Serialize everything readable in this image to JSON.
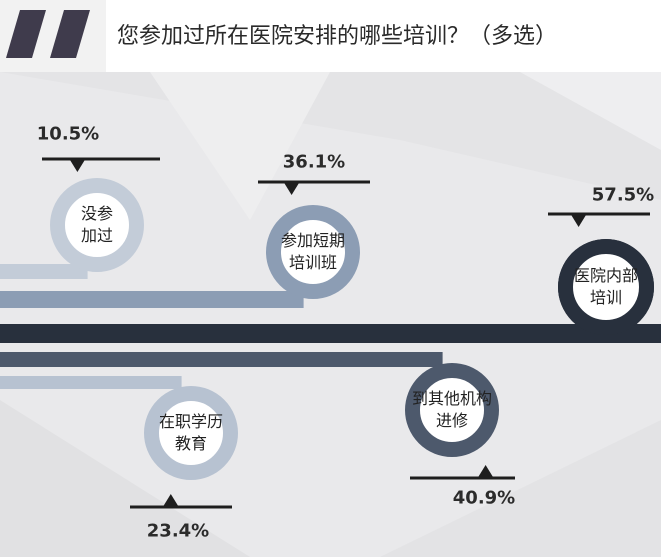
{
  "title": "您参加过所在医院安排的哪些培训？（多选）",
  "colors": {
    "light": "#c3ccd8",
    "mid": "#8c9db4",
    "dark": "#28303d",
    "slate": "#4d596c",
    "pale": "#b7c2d1"
  },
  "chart_data": {
    "type": "bar",
    "title": "您参加过所在医院安排的哪些培训？（多选）",
    "categories": [
      "没参加过",
      "参加短期培训班",
      "医院内部培训",
      "到其他机构进修",
      "在职学历教育"
    ],
    "values": [
      10.5,
      36.1,
      57.5,
      40.9,
      23.4
    ],
    "value_labels": [
      "10.5%",
      "36.1%",
      "57.5%",
      "40.9%",
      "23.4%"
    ],
    "bubble_lines": [
      [
        "没参",
        "加过"
      ],
      [
        "参加短期",
        "培训班"
      ],
      [
        "医院内部",
        "培训"
      ],
      [
        "到其他机构",
        "进修"
      ],
      [
        "在职学历",
        "教育"
      ]
    ],
    "unit": "%"
  }
}
